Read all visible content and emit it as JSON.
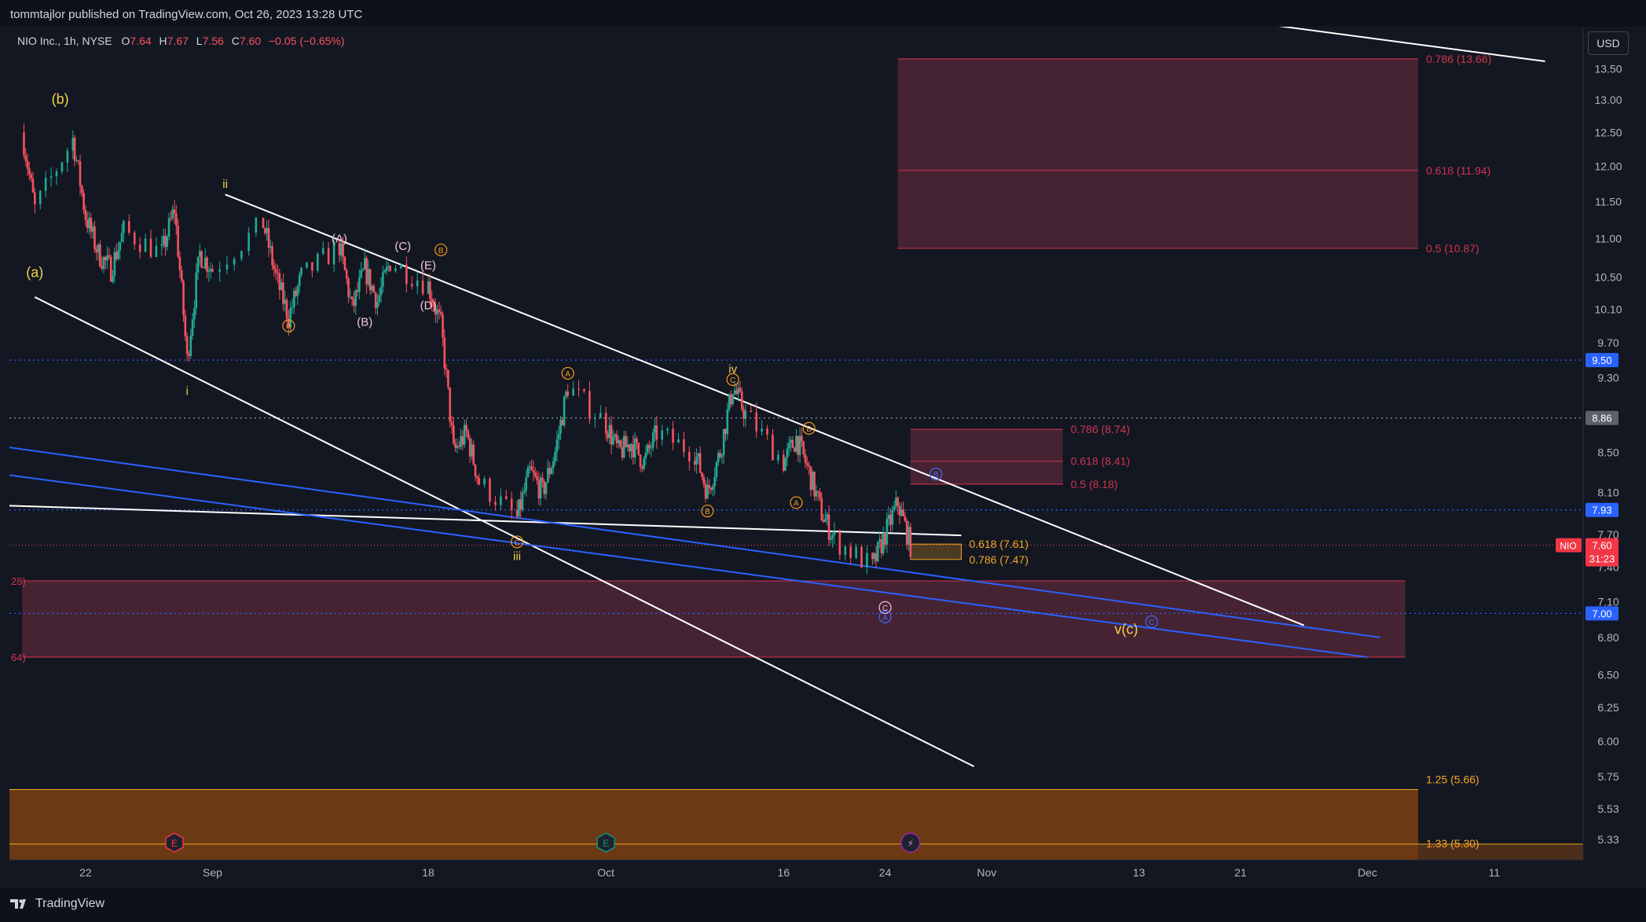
{
  "header": {
    "publisher": "tommtajlor published on TradingView.com, Oct 26, 2023 13:28 UTC"
  },
  "legend": {
    "symbol": "NIO Inc., 1h, NYSE",
    "open_label": "O",
    "open": "7.64",
    "high_label": "H",
    "high": "7.67",
    "low_label": "L",
    "low": "7.56",
    "close_label": "C",
    "close": "7.60",
    "change": "−0.05 (−0.65%)"
  },
  "currency": "USD",
  "footer": {
    "brand": "TradingView"
  },
  "colors": {
    "background": "#131722",
    "text": "#d1d4dc",
    "down": "#f7525f",
    "up": "#22ab94",
    "fib_zone": "#5d2a3a",
    "fib_line": "#d1344d",
    "target_zone": "#7b3f12",
    "target_line": "#f5a623",
    "blue_line": "#2962ff",
    "white_line": "#ffffff",
    "wave_yellow": "#f5d24b",
    "wave_orange": "#f59c1a",
    "wave_pink": "#f5c6d9",
    "wave_blue": "#3d6bff"
  },
  "chart_data": {
    "type": "candlestick",
    "symbol": "NIO",
    "interval": "1h",
    "exchange": "NYSE",
    "y_scale": "log",
    "ylim": [
      5.2,
      14.2
    ],
    "x_range": [
      "2023-08-16",
      "2023-12-18"
    ],
    "y_ticks": [
      "13.50",
      "13.00",
      "12.50",
      "12.00",
      "11.50",
      "11.00",
      "10.50",
      "10.10",
      "9.70",
      "9.30",
      "8.50",
      "8.10",
      "7.70",
      "7.40",
      "7.10",
      "6.80",
      "6.50",
      "6.25",
      "6.00",
      "5.75",
      "5.53",
      "5.33"
    ],
    "x_ticks": [
      {
        "date": "2023-08-22",
        "label": "22"
      },
      {
        "date": "2023-09-01",
        "label": "Sep"
      },
      {
        "date": "2023-09-18",
        "label": "18"
      },
      {
        "date": "2023-10-02",
        "label": "Oct"
      },
      {
        "date": "2023-10-16",
        "label": "16"
      },
      {
        "date": "2023-10-24",
        "label": "24"
      },
      {
        "date": "2023-11-01",
        "label": "Nov"
      },
      {
        "date": "2023-11-13",
        "label": "13"
      },
      {
        "date": "2023-11-21",
        "label": "21"
      },
      {
        "date": "2023-12-01",
        "label": "Dec"
      },
      {
        "date": "2023-12-11",
        "label": "11"
      }
    ],
    "price_path": [
      [
        "2023-08-17",
        12.5
      ],
      [
        "2023-08-18",
        11.4
      ],
      [
        "2023-08-21",
        12.4
      ],
      [
        "2023-08-22",
        11.3
      ],
      [
        "2023-08-23",
        10.8
      ],
      [
        "2023-08-24",
        10.6
      ],
      [
        "2023-08-25",
        11.1
      ],
      [
        "2023-08-28",
        10.8
      ],
      [
        "2023-08-29",
        11.4
      ],
      [
        "2023-08-30",
        9.5
      ],
      [
        "2023-08-31",
        10.8
      ],
      [
        "2023-09-01",
        10.6
      ],
      [
        "2023-09-05",
        11.2
      ],
      [
        "2023-09-06",
        10.5
      ],
      [
        "2023-09-07",
        10.0
      ],
      [
        "2023-09-08",
        10.5
      ],
      [
        "2023-09-11",
        10.9
      ],
      [
        "2023-09-12",
        10.1
      ],
      [
        "2023-09-13",
        10.6
      ],
      [
        "2023-09-14",
        10.2
      ],
      [
        "2023-09-15",
        10.7
      ],
      [
        "2023-09-18",
        10.4
      ],
      [
        "2023-09-19",
        9.9
      ],
      [
        "2023-09-20",
        8.5
      ],
      [
        "2023-09-21",
        8.7
      ],
      [
        "2023-09-22",
        8.2
      ],
      [
        "2023-09-25",
        7.85
      ],
      [
        "2023-09-26",
        8.3
      ],
      [
        "2023-09-27",
        8.1
      ],
      [
        "2023-09-28",
        8.5
      ],
      [
        "2023-09-29",
        9.2
      ],
      [
        "2023-10-02",
        8.8
      ],
      [
        "2023-10-03",
        8.5
      ],
      [
        "2023-10-04",
        8.6
      ],
      [
        "2023-10-05",
        8.4
      ],
      [
        "2023-10-06",
        8.7
      ],
      [
        "2023-10-09",
        8.5
      ],
      [
        "2023-10-10",
        8.1
      ],
      [
        "2023-10-11",
        8.5
      ],
      [
        "2023-10-12",
        9.2
      ],
      [
        "2023-10-13",
        8.9
      ],
      [
        "2023-10-16",
        8.4
      ],
      [
        "2023-10-17",
        8.65
      ],
      [
        "2023-10-18",
        8.3
      ],
      [
        "2023-10-19",
        7.9
      ],
      [
        "2023-10-20",
        7.65
      ],
      [
        "2023-10-23",
        7.4
      ],
      [
        "2023-10-24",
        7.7
      ],
      [
        "2023-10-25",
        8.0
      ],
      [
        "2023-10-26",
        7.6
      ]
    ],
    "horizontal_levels": [
      {
        "price": 9.5,
        "label": "9.50",
        "style": "dotted-blue"
      },
      {
        "price": 8.86,
        "label": "8.86",
        "style": "dotted-gray"
      },
      {
        "price": 7.93,
        "label": "7.93",
        "style": "dotted-blue"
      },
      {
        "price": 7.0,
        "label": "7.00",
        "style": "dotted-blue"
      }
    ],
    "last_price": {
      "symbol": "NIO",
      "price": 7.6,
      "label": "7.60",
      "countdown": "31:23"
    },
    "fib_zones": [
      {
        "from": "2023-10-25",
        "to": "2023-12-05",
        "top": 13.66,
        "bottom": 10.87,
        "levels": [
          {
            "price": 13.66,
            "label": "0.786 (13.66)"
          },
          {
            "price": 11.94,
            "label": "0.618 (11.94)"
          },
          {
            "price": 10.87,
            "label": "0.5 (10.87)"
          }
        ]
      },
      {
        "from": "2023-10-26",
        "to": "2023-11-07",
        "top": 8.74,
        "bottom": 8.18,
        "levels": [
          {
            "price": 8.74,
            "label": "0.786 (8.74)"
          },
          {
            "price": 8.41,
            "label": "0.618 (8.41)"
          },
          {
            "price": 8.18,
            "label": "0.5 (8.18)"
          }
        ]
      },
      {
        "from": "2023-08-17",
        "to": "2023-12-04",
        "top": 7.28,
        "bottom": 6.64,
        "levels": [
          {
            "price": 7.28,
            "label": "28)"
          },
          {
            "price": 6.64,
            "label": "64)"
          }
        ]
      }
    ],
    "retracement_box": {
      "from": "2023-10-26",
      "to": "2023-10-30",
      "top": 7.61,
      "bottom": 7.47,
      "levels": [
        {
          "price": 7.61,
          "label": "0.618 (7.61)"
        },
        {
          "price": 7.47,
          "label": "0.786 (7.47)"
        }
      ]
    },
    "target_zones": [
      {
        "from": "2023-08-16",
        "to": "2023-12-05",
        "top": 5.66,
        "bottom": 5.2,
        "levels": [
          {
            "price": 5.66,
            "label": "1.25 (5.66)"
          },
          {
            "price": 5.3,
            "label": "1.33 (5.30)"
          }
        ]
      }
    ],
    "wave_labels": [
      {
        "date": "2023-08-18",
        "price": 10.55,
        "text": "(a)",
        "color": "yellow",
        "size": "large"
      },
      {
        "date": "2023-08-20",
        "price": 13.0,
        "text": "(b)",
        "color": "yellow",
        "size": "large"
      },
      {
        "date": "2023-08-30",
        "price": 9.15,
        "text": "i",
        "color": "yellow"
      },
      {
        "date": "2023-09-02",
        "price": 11.75,
        "text": "ii",
        "color": "yellow"
      },
      {
        "date": "2023-09-25",
        "price": 7.5,
        "text": "iii",
        "color": "yellow"
      },
      {
        "date": "2023-10-12",
        "price": 9.4,
        "text": "iv",
        "color": "yellow"
      },
      {
        "date": "2023-11-12",
        "price": 6.86,
        "text": "v(c)",
        "color": "yellow",
        "size": "large"
      },
      {
        "date": "2023-09-07",
        "price": 9.9,
        "text": "A",
        "color": "orange",
        "circled": true
      },
      {
        "date": "2023-09-11",
        "price": 11.0,
        "text": "(A)",
        "color": "pink"
      },
      {
        "date": "2023-09-13",
        "price": 9.95,
        "text": "(B)",
        "color": "pink"
      },
      {
        "date": "2023-09-16",
        "price": 10.9,
        "text": "(C)",
        "color": "pink"
      },
      {
        "date": "2023-09-18",
        "price": 10.15,
        "text": "(D)",
        "color": "pink"
      },
      {
        "date": "2023-09-18",
        "price": 10.65,
        "text": "(E)",
        "color": "pink"
      },
      {
        "date": "2023-09-19",
        "price": 10.85,
        "text": "B",
        "color": "orange",
        "circled": true
      },
      {
        "date": "2023-09-25",
        "price": 7.63,
        "text": "C",
        "color": "orange",
        "circled": true
      },
      {
        "date": "2023-09-29",
        "price": 9.35,
        "text": "A",
        "color": "orange",
        "circled": true
      },
      {
        "date": "2023-10-10",
        "price": 7.92,
        "text": "B",
        "color": "orange",
        "circled": true
      },
      {
        "date": "2023-10-12",
        "price": 9.28,
        "text": "C",
        "color": "orange",
        "circled": true
      },
      {
        "date": "2023-10-17",
        "price": 8.0,
        "text": "A",
        "color": "orange",
        "circled": true
      },
      {
        "date": "2023-10-18",
        "price": 8.75,
        "text": "B",
        "color": "orange",
        "circled": true
      },
      {
        "date": "2023-10-24",
        "price": 7.05,
        "text": "C",
        "color": "pink",
        "circled": true
      },
      {
        "date": "2023-10-24",
        "price": 6.97,
        "text": "A",
        "color": "blue",
        "circled": true
      },
      {
        "date": "2023-10-28",
        "price": 8.28,
        "text": "B",
        "color": "blue",
        "circled": true
      },
      {
        "date": "2023-11-14",
        "price": 6.93,
        "text": "C",
        "color": "blue",
        "circled": true
      }
    ],
    "trendlines": [
      {
        "from": [
          "2023-09-02",
          11.6
        ],
        "to": [
          "2023-11-26",
          6.9
        ],
        "color": "white"
      },
      {
        "from": [
          "2023-08-18",
          10.25
        ],
        "to": [
          "2023-10-31",
          5.82
        ],
        "color": "white"
      },
      {
        "from": [
          "2023-08-16",
          7.97
        ],
        "to": [
          "2023-10-30",
          7.69
        ],
        "color": "white"
      },
      {
        "from": [
          "2023-08-16",
          8.55
        ],
        "to": [
          "2023-12-02",
          6.8
        ],
        "color": "blue"
      },
      {
        "from": [
          "2023-08-16",
          8.27
        ],
        "to": [
          "2023-12-01",
          6.64
        ],
        "color": "blue"
      },
      {
        "from": [
          "2023-11-21",
          14.3
        ],
        "to": [
          "2023-12-15",
          13.62
        ],
        "color": "white"
      }
    ],
    "event_markers": [
      {
        "date": "2023-08-29",
        "text": "E",
        "kind": "earnings"
      },
      {
        "date": "2023-10-02",
        "text": "E",
        "kind": "earnings"
      },
      {
        "date": "2023-10-26",
        "text": "⚡",
        "kind": "event"
      }
    ]
  }
}
